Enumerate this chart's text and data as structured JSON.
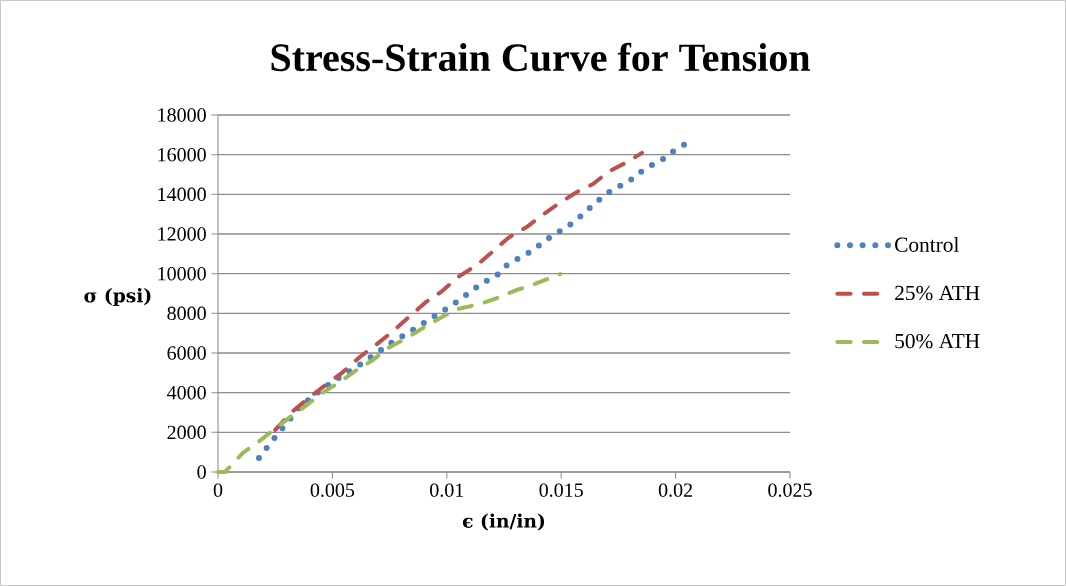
{
  "chart_data": {
    "type": "line",
    "title": "Stress-Strain Curve for Tension",
    "xlabel": "ϵ (in/in)",
    "ylabel": "σ (psi)",
    "xlim": [
      0,
      0.025
    ],
    "xticks": [
      0,
      0.005,
      0.01,
      0.015,
      0.02,
      0.025
    ],
    "ylim": [
      0,
      18000
    ],
    "yticks": [
      0,
      2000,
      4000,
      6000,
      8000,
      10000,
      12000,
      14000,
      16000,
      18000
    ],
    "grid": "y",
    "legend": "right",
    "series": [
      {
        "name": "Control",
        "color": "#4f81bd",
        "line_style": "dotted",
        "x": [
          0.00179,
          0.00236,
          0.00293,
          0.0035,
          0.00415,
          0.00476,
          0.00546,
          0.00612,
          0.00682,
          0.00756,
          0.0083,
          0.009,
          0.0097,
          0.01036,
          0.01097,
          0.01154,
          0.01215,
          0.01268,
          0.0135,
          0.01412,
          0.01464,
          0.01525,
          0.01582,
          0.01648,
          0.01722,
          0.01792,
          0.01866,
          0.01945,
          0.01971,
          0.0205
        ],
        "values": [
          700,
          1560,
          2370,
          3180,
          3830,
          4340,
          4890,
          5350,
          5900,
          6500,
          7010,
          7510,
          8020,
          8520,
          9030,
          9530,
          9880,
          10490,
          10990,
          11500,
          11950,
          12350,
          12860,
          13560,
          14220,
          14620,
          15280,
          15780,
          16040,
          16590
        ]
      },
      {
        "name": "25% ATH",
        "color": "#c0504d",
        "line_style": "dashed",
        "x": [
          0.0025,
          0.00323,
          0.00402,
          0.00481,
          0.00546,
          0.0062,
          0.007,
          0.0076,
          0.00835,
          0.00909,
          0.00975,
          0.01049,
          0.01132,
          0.01193,
          0.01268,
          0.0135,
          0.01412,
          0.01486,
          0.01569,
          0.01639,
          0.01705,
          0.01788,
          0.01853
        ],
        "values": [
          2120,
          3030,
          3780,
          4490,
          5040,
          5800,
          6500,
          7060,
          7820,
          8570,
          9080,
          9830,
          10440,
          11040,
          11800,
          12360,
          12910,
          13510,
          14120,
          14520,
          15130,
          15630,
          16090
        ]
      },
      {
        "name": "50% ATH",
        "color": "#9bbb59",
        "line_style": "dashed",
        "x": [
          0,
          0.0003,
          0.00109,
          0.00175,
          0.00249,
          0.00315,
          0.00389,
          0.00455,
          0.00533,
          0.00599,
          0.00677,
          0.00743,
          0.00826,
          0.00896,
          0.00979,
          0.01049,
          0.01145,
          0.01219,
          0.01307,
          0.01385,
          0.01495
        ],
        "values": [
          0,
          0,
          960,
          1510,
          2170,
          2770,
          3380,
          3980,
          4540,
          5090,
          5650,
          6250,
          6760,
          7260,
          7820,
          8220,
          8470,
          8770,
          9180,
          9480,
          9980
        ]
      }
    ]
  }
}
